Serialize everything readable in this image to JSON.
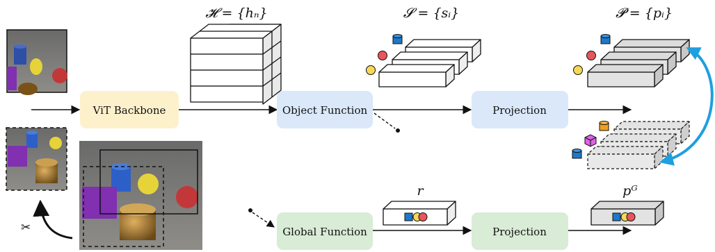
{
  "math": {
    "hidden_set": "𝓗 = {hₙ}",
    "slot_set": "𝓢 = {sᵢ}",
    "proj_set": "𝓟 = {pᵢ}",
    "global_repr": "r",
    "global_proj": "pᴳ"
  },
  "boxes": {
    "vit": "ViT Backbone",
    "object_function": "Object Function",
    "projection_top": "Projection",
    "global_function": "Global Function",
    "projection_bottom": "Projection"
  },
  "icons": {
    "crop": "scissors-icon"
  },
  "colors": {
    "vit_fill": "#fdf1cc",
    "object_fill": "#dae8fa",
    "global_fill": "#d9ecd6",
    "contrast_arrow": "#1e9fe0",
    "yellow": "#f5d858",
    "red": "#e8555a",
    "blue": "#1f78c8",
    "orange": "#f0a020",
    "magenta": "#e060e8"
  }
}
